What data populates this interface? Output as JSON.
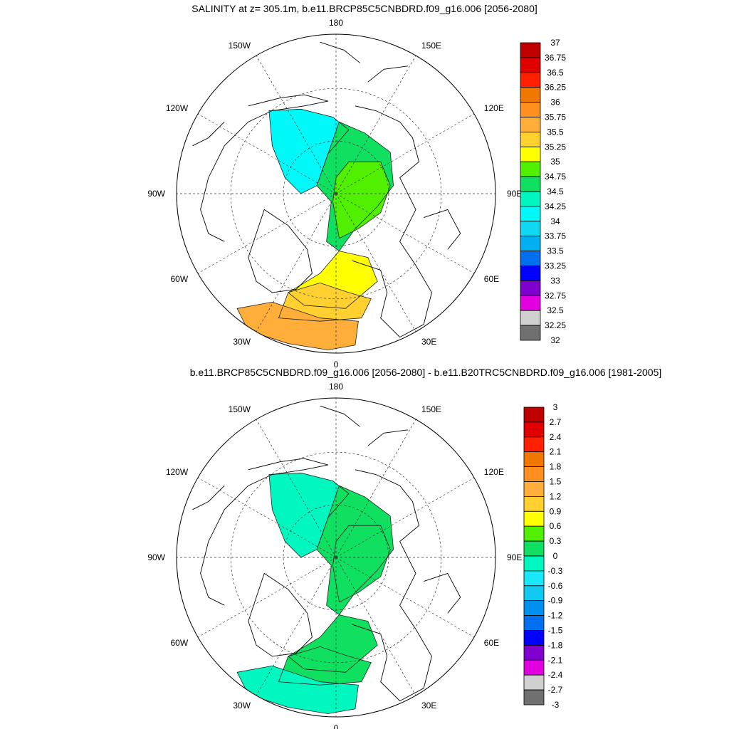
{
  "panels": [
    {
      "title": "SALINITY at z= 305.1m, b.e11.BRCP85C5CNBDRD.f09_g16.006 [2056-2080]",
      "lon_labels": [
        "180",
        "150E",
        "120E",
        "90E",
        "60E",
        "30E",
        "0",
        "30W",
        "60W",
        "90W",
        "120W",
        "150W"
      ],
      "colorbar": {
        "labels": [
          "37",
          "36.75",
          "36.5",
          "36.25",
          "36",
          "35.75",
          "35.5",
          "35.25",
          "35",
          "34.75",
          "34.5",
          "34.25",
          "34",
          "33.75",
          "33.5",
          "33.25",
          "33",
          "32.75",
          "32.5",
          "32.25",
          "32"
        ],
        "colors": [
          "#c00000",
          "#e00000",
          "#ff2000",
          "#f07800",
          "#ff9020",
          "#ffae3a",
          "#ffd030",
          "#ffff00",
          "#50f000",
          "#10e060",
          "#00f8c0",
          "#00f8f8",
          "#10d8f0",
          "#00b0f0",
          "#0070f0",
          "#0000ff",
          "#8000d0",
          "#e000e0",
          "#d0d0d0",
          "#707070"
        ]
      },
      "regions": {
        "a": "#00f8f8",
        "b": "#10e060",
        "c": "#50f000",
        "d": "#ffff00",
        "e": "#ffd030",
        "f": "#ffae3a"
      }
    },
    {
      "title": "b.e11.BRCP85C5CNBDRD.f09_g16.006 [2056-2080] - b.e11.B20TRC5CNBDRD.f09_g16.006 [1981-2005]",
      "lon_labels": [
        "180",
        "150E",
        "120E",
        "90E",
        "60E",
        "30E",
        "0",
        "30W",
        "60W",
        "90W",
        "120W",
        "150W"
      ],
      "colorbar": {
        "labels": [
          "3",
          "2.7",
          "2.4",
          "2.1",
          "1.8",
          "1.5",
          "1.2",
          "0.9",
          "0.6",
          "0.3",
          "0",
          "-0.3",
          "-0.6",
          "-0.9",
          "-1.2",
          "-1.5",
          "-1.8",
          "-2.1",
          "-2.4",
          "-2.7",
          "-3"
        ],
        "colors": [
          "#c00000",
          "#e00000",
          "#ff2000",
          "#f07800",
          "#ff9020",
          "#ffae3a",
          "#ffd030",
          "#ffff00",
          "#50f000",
          "#10e060",
          "#00f8c0",
          "#18e8f8",
          "#10c8f0",
          "#0090f0",
          "#0070f0",
          "#0000ff",
          "#8000d0",
          "#e000e0",
          "#d0d0d0",
          "#707070"
        ]
      },
      "regions": {
        "a": "#00f8c0",
        "b": "#10e060",
        "c": "#10e060",
        "d": "#10e060",
        "e": "#10e060",
        "f": "#00f8c0"
      }
    }
  ]
}
